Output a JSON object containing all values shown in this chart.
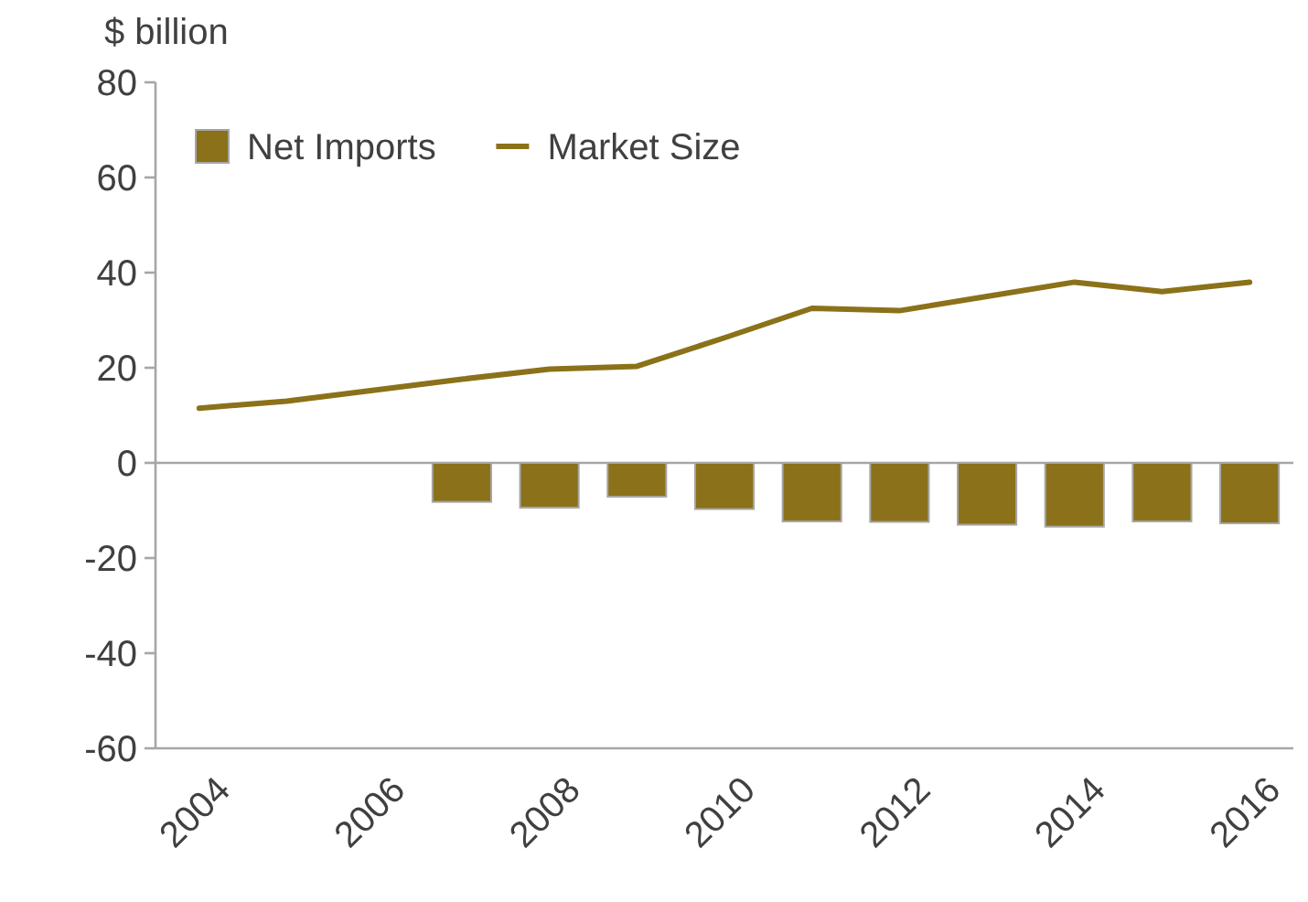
{
  "chart_data": {
    "type": "bar",
    "ylabel": "$ billion",
    "categories": [
      "2004",
      null,
      "2006",
      null,
      "2008",
      null,
      "2010",
      null,
      "2012",
      null,
      "2014",
      null,
      "2016"
    ],
    "series": [
      {
        "name": "Net Imports",
        "color": "#8b7119",
        "values": [
          null,
          null,
          null,
          -8.2,
          -9.4,
          -7.1,
          -9.7,
          -12.3,
          -12.4,
          -13,
          -13.4,
          -12.3,
          -12.7
        ]
      },
      {
        "name": "Market Size",
        "type": "line",
        "color": "#8b7119",
        "values": [
          11.5,
          13,
          15.3,
          17.6,
          19.7,
          20.3,
          26.3,
          32.5,
          32,
          35,
          38,
          36,
          38
        ]
      }
    ],
    "ylim": [
      -60,
      80
    ],
    "yticks": [
      -60,
      -40,
      -20,
      0,
      20,
      40,
      60,
      80
    ],
    "legend": "top left"
  }
}
